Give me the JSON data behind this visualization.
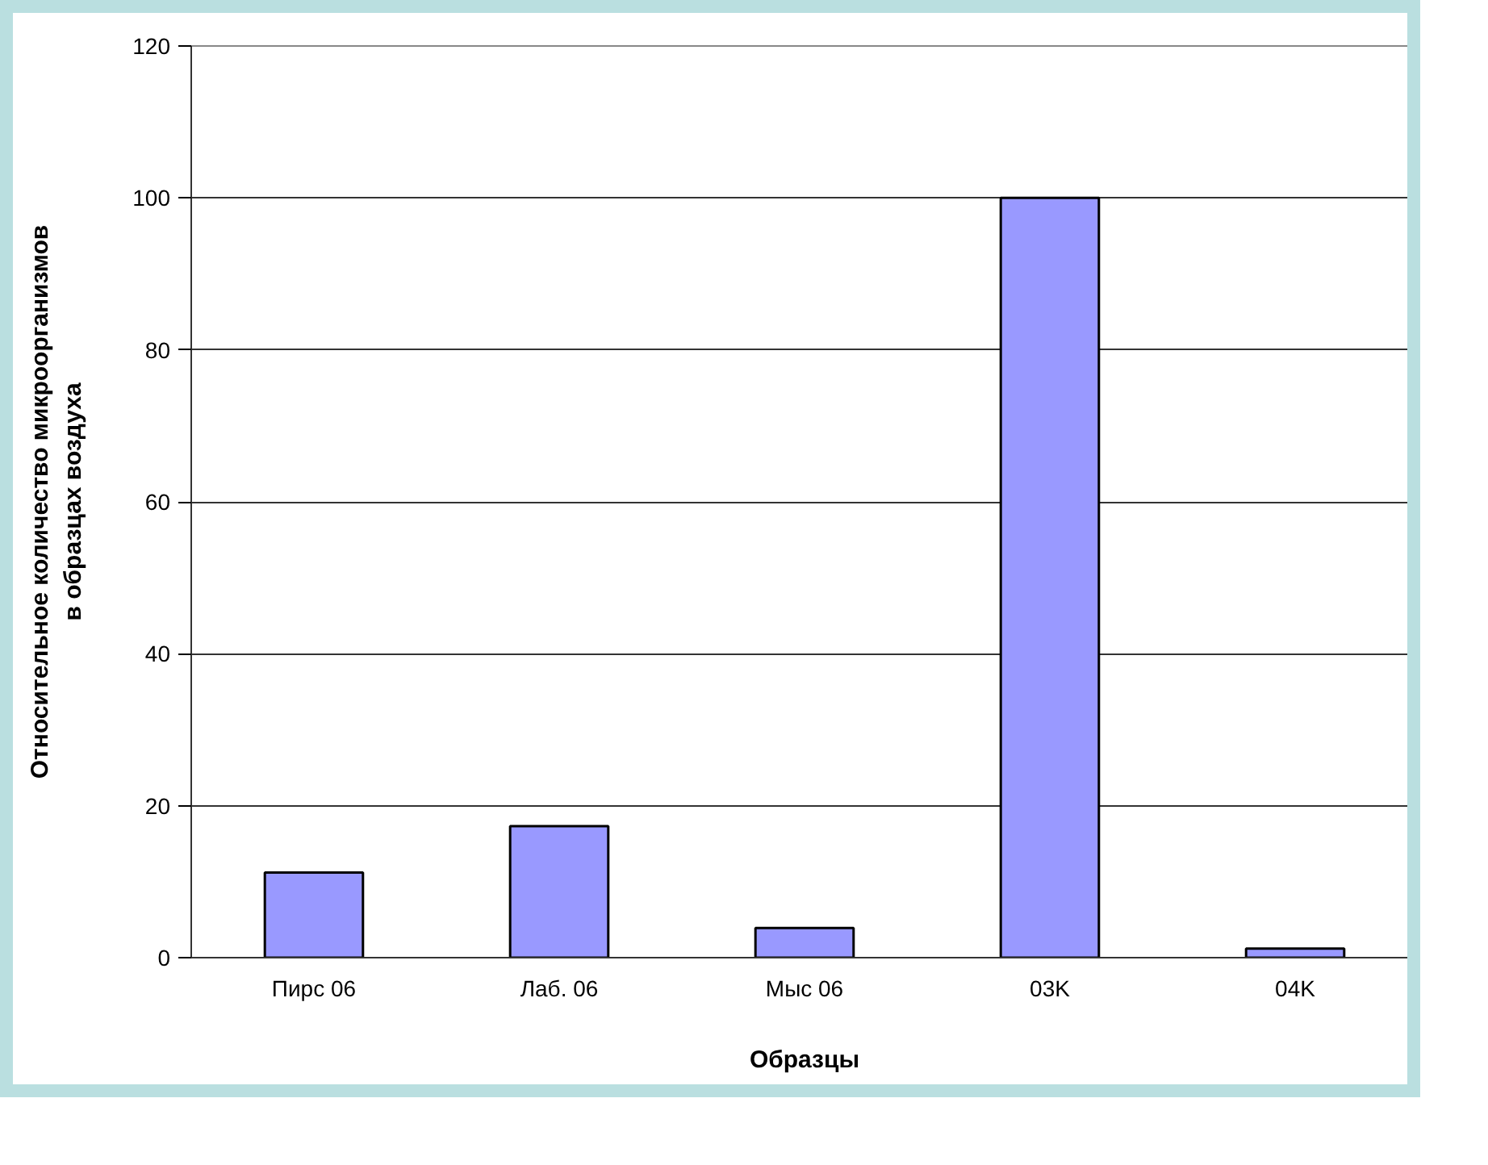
{
  "chart_data": {
    "type": "bar",
    "categories": [
      "Пирс 06",
      "Лаб. 06",
      "Мыс 06",
      "03K",
      "04K"
    ],
    "values": [
      11.2,
      17.3,
      3.9,
      100,
      1.2
    ],
    "color": "#9999ff",
    "xlabel": "Образцы",
    "ylabel": "Относительное количество микроорганизмов\nв образцах воздуха",
    "ylim": [
      0,
      120
    ],
    "yticks": [
      0,
      20,
      40,
      60,
      80,
      100,
      120
    ],
    "grid": "y"
  }
}
